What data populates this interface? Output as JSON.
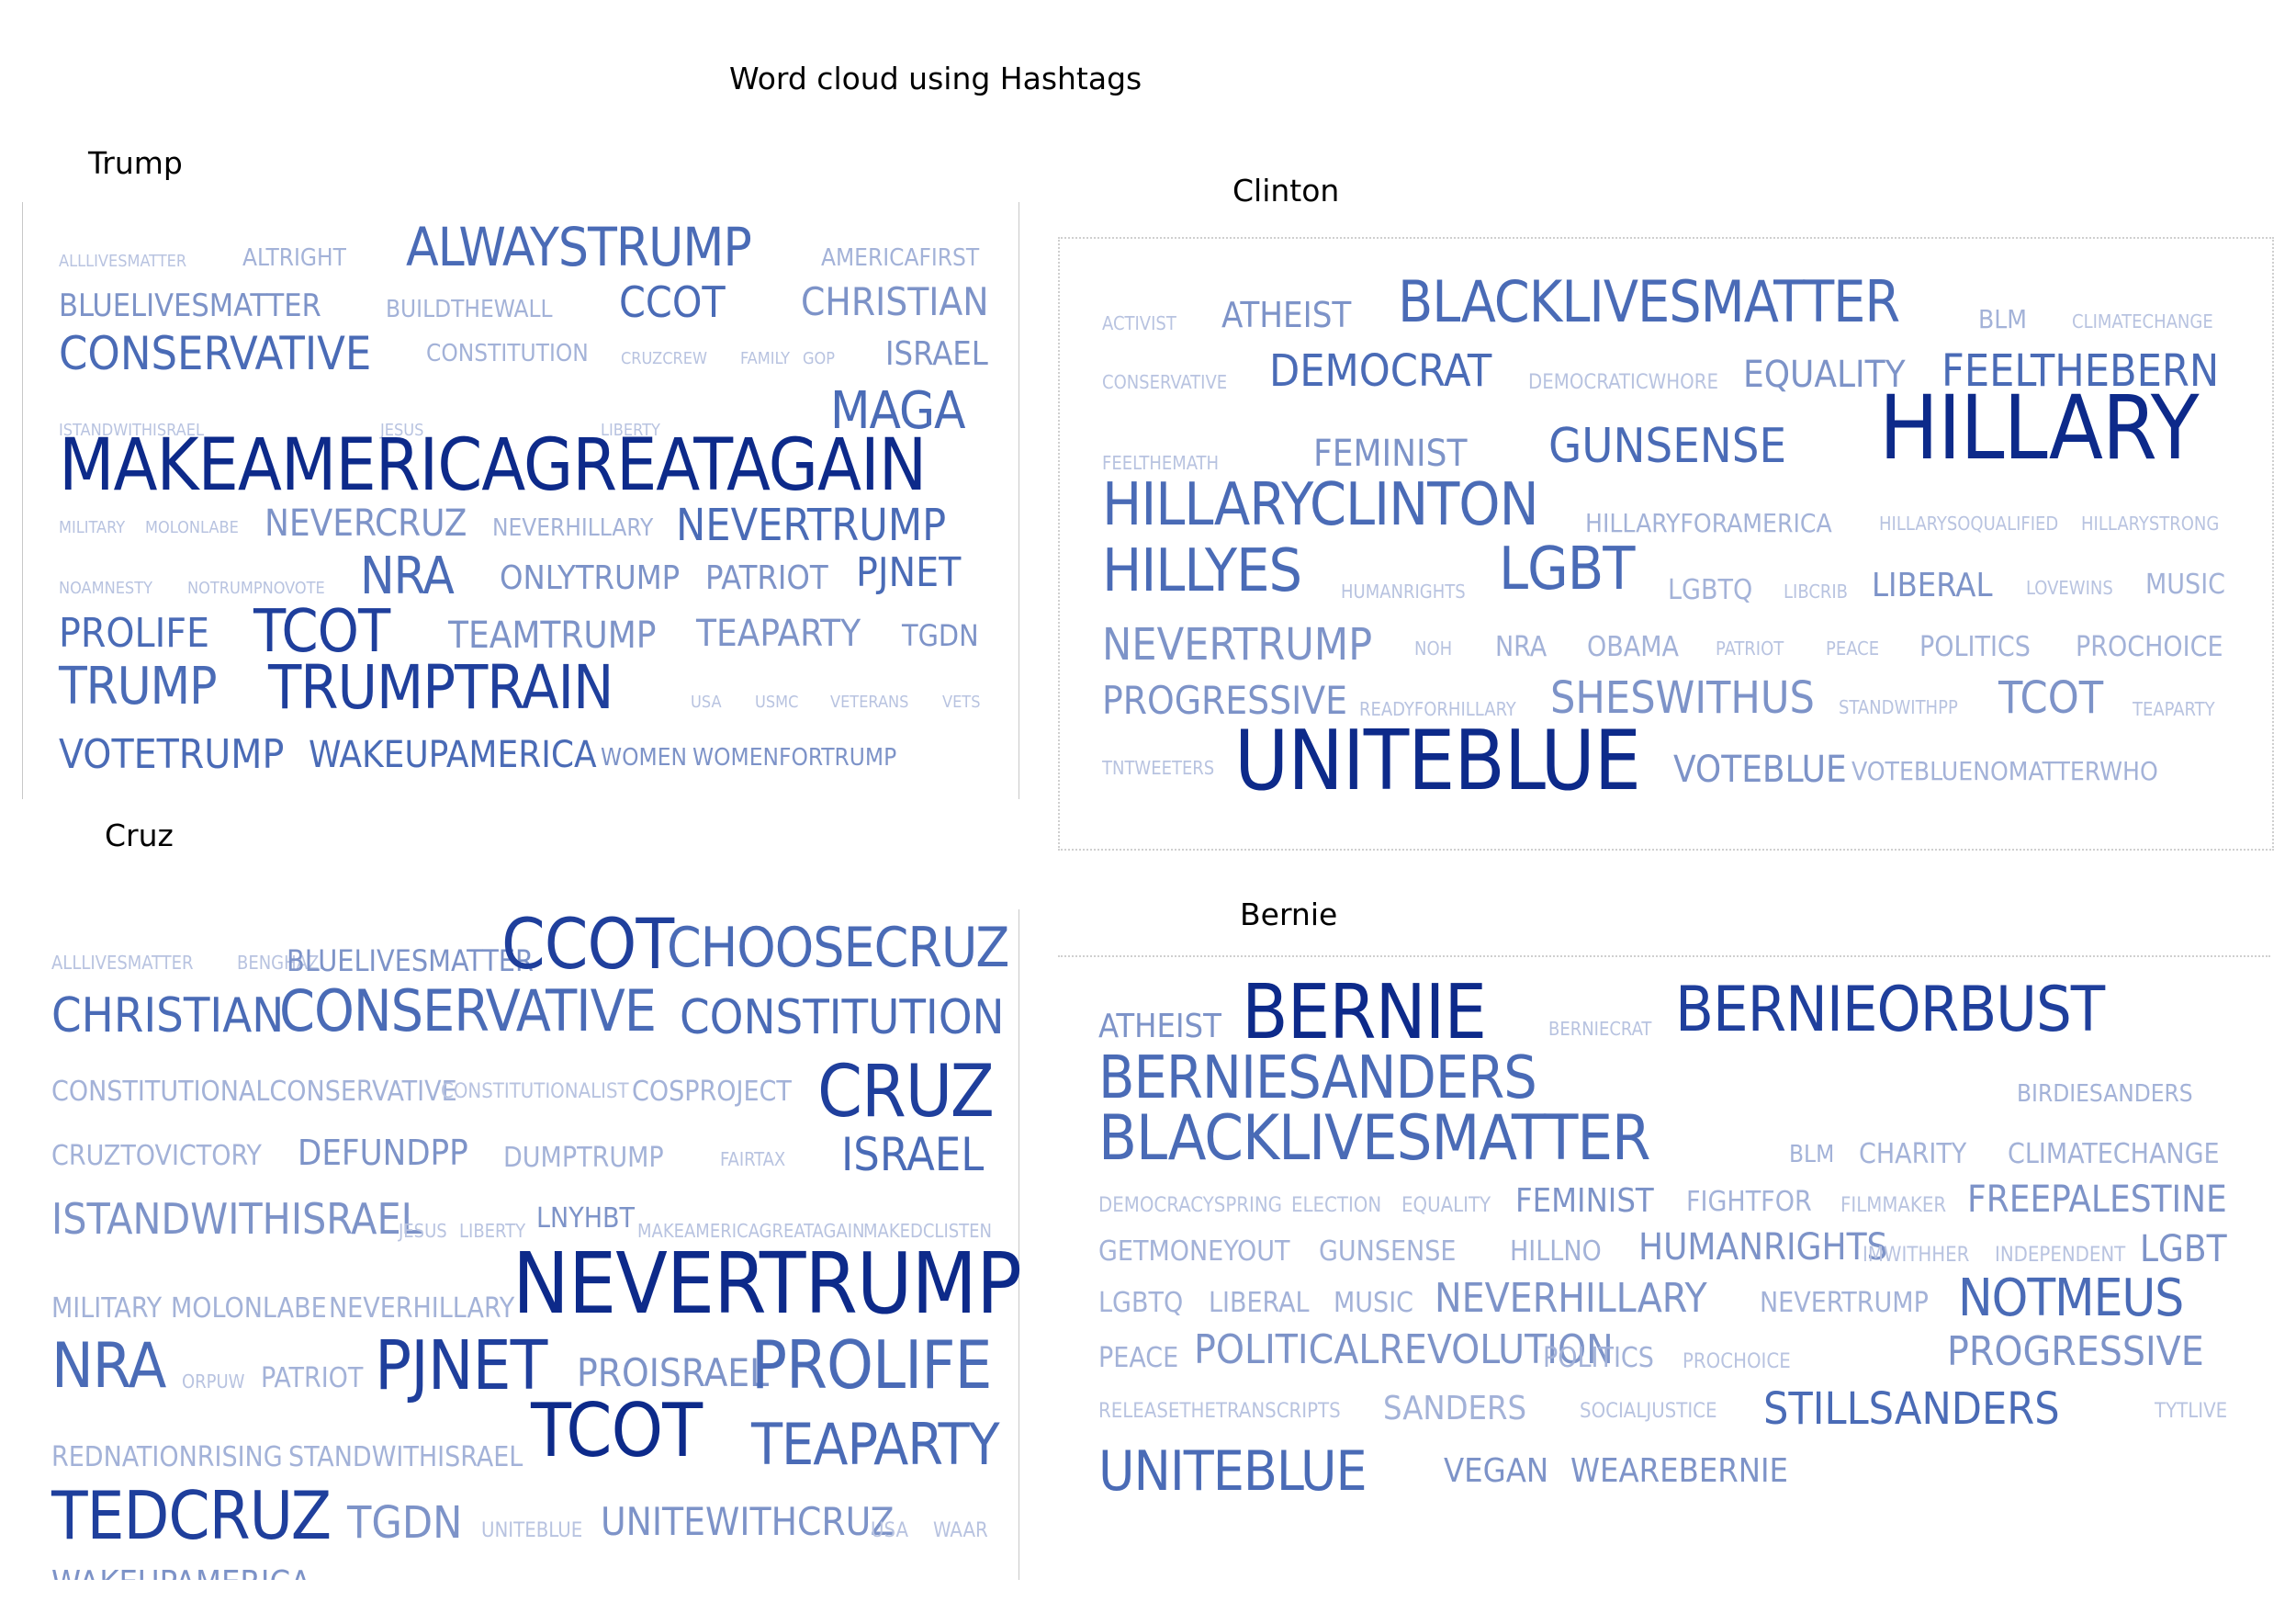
{
  "title": "Word cloud using Hashtags",
  "colors": {
    "darkest": "#0d2a8a",
    "dark": "#1f3f9c",
    "medium": "#4a6bb6",
    "light": "#7d93c8",
    "lighter": "#a3b2d8",
    "lightest": "#b8c3e0"
  },
  "clouds": [
    {
      "name": "Trump",
      "words": [
        {
          "text": "ALLLIVESMATTER",
          "weight": "lightest"
        },
        {
          "text": "ALTRIGHT",
          "weight": "lighter"
        },
        {
          "text": "ALWAYSTRUMP",
          "weight": "medium"
        },
        {
          "text": "AMERICAFIRST",
          "weight": "lighter"
        },
        {
          "text": "BLUELIVESMATTER",
          "weight": "light"
        },
        {
          "text": "BUILDTHEWALL",
          "weight": "lighter"
        },
        {
          "text": "CCOT",
          "weight": "medium"
        },
        {
          "text": "CHRISTIAN",
          "weight": "light"
        },
        {
          "text": "CONSERVATIVE",
          "weight": "medium"
        },
        {
          "text": "CONSTITUTION",
          "weight": "lighter"
        },
        {
          "text": "CRUZCREW",
          "weight": "lightest"
        },
        {
          "text": "FAMILY",
          "weight": "lightest"
        },
        {
          "text": "GOP",
          "weight": "lightest"
        },
        {
          "text": "ISRAEL",
          "weight": "light"
        },
        {
          "text": "ISTANDWITHISRAEL",
          "weight": "lightest"
        },
        {
          "text": "JESUS",
          "weight": "lightest"
        },
        {
          "text": "LIBERTY",
          "weight": "lightest"
        },
        {
          "text": "MAGA",
          "weight": "medium"
        },
        {
          "text": "MAKEAMERICAGREATAGAIN",
          "weight": "darkest"
        },
        {
          "text": "MILITARY",
          "weight": "lightest"
        },
        {
          "text": "MOLONLABE",
          "weight": "lightest"
        },
        {
          "text": "NEVERCRUZ",
          "weight": "light"
        },
        {
          "text": "NEVERHILLARY",
          "weight": "lighter"
        },
        {
          "text": "NEVERTRUMP",
          "weight": "medium"
        },
        {
          "text": "NOAMNESTY",
          "weight": "lightest"
        },
        {
          "text": "NOTRUMPNOVOTE",
          "weight": "lightest"
        },
        {
          "text": "NRA",
          "weight": "medium"
        },
        {
          "text": "ONLYTRUMP",
          "weight": "light"
        },
        {
          "text": "PATRIOT",
          "weight": "light"
        },
        {
          "text": "PJNET",
          "weight": "medium"
        },
        {
          "text": "PROLIFE",
          "weight": "medium"
        },
        {
          "text": "TCOT",
          "weight": "dark"
        },
        {
          "text": "TEAMTRUMP",
          "weight": "light"
        },
        {
          "text": "TEAPARTY",
          "weight": "light"
        },
        {
          "text": "TGDN",
          "weight": "light"
        },
        {
          "text": "TRUMP",
          "weight": "medium"
        },
        {
          "text": "TRUMPTRAIN",
          "weight": "dark"
        },
        {
          "text": "USA",
          "weight": "lightest"
        },
        {
          "text": "USMC",
          "weight": "lightest"
        },
        {
          "text": "VETERANS",
          "weight": "lightest"
        },
        {
          "text": "VETS",
          "weight": "lightest"
        },
        {
          "text": "VOTETRUMP",
          "weight": "medium"
        },
        {
          "text": "WAKEUPAMERICA",
          "weight": "medium"
        },
        {
          "text": "WOMEN",
          "weight": "light"
        },
        {
          "text": "WOMENFORTRUMP",
          "weight": "light"
        }
      ]
    },
    {
      "name": "Clinton",
      "words": [
        {
          "text": "ACTIVIST",
          "weight": "lightest"
        },
        {
          "text": "ATHEIST",
          "weight": "light"
        },
        {
          "text": "BLACKLIVESMATTER",
          "weight": "medium"
        },
        {
          "text": "BLM",
          "weight": "lighter"
        },
        {
          "text": "CLIMATECHANGE",
          "weight": "lightest"
        },
        {
          "text": "CONSERVATIVE",
          "weight": "lightest"
        },
        {
          "text": "DEMOCRAT",
          "weight": "medium"
        },
        {
          "text": "DEMOCRATICWHORE",
          "weight": "lightest"
        },
        {
          "text": "EQUALITY",
          "weight": "light"
        },
        {
          "text": "FEELTHEBERN",
          "weight": "medium"
        },
        {
          "text": "FEELTHEMATH",
          "weight": "lightest"
        },
        {
          "text": "FEMINIST",
          "weight": "light"
        },
        {
          "text": "GUNSENSE",
          "weight": "medium"
        },
        {
          "text": "HILLARY",
          "weight": "darkest"
        },
        {
          "text": "HILLARYCLINTON",
          "weight": "medium"
        },
        {
          "text": "HILLARYFORAMERICA",
          "weight": "lighter"
        },
        {
          "text": "HILLARYSOQUALIFIED",
          "weight": "lightest"
        },
        {
          "text": "HILLARYSTRONG",
          "weight": "lightest"
        },
        {
          "text": "HILLYES",
          "weight": "medium"
        },
        {
          "text": "HUMANRIGHTS",
          "weight": "lightest"
        },
        {
          "text": "LGBT",
          "weight": "medium"
        },
        {
          "text": "LGBTQ",
          "weight": "lighter"
        },
        {
          "text": "LIBCRIB",
          "weight": "lightest"
        },
        {
          "text": "LIBERAL",
          "weight": "light"
        },
        {
          "text": "LOVEWINS",
          "weight": "lightest"
        },
        {
          "text": "MUSIC",
          "weight": "lighter"
        },
        {
          "text": "NEVERTRUMP",
          "weight": "light"
        },
        {
          "text": "NOH",
          "weight": "lightest"
        },
        {
          "text": "NRA",
          "weight": "lighter"
        },
        {
          "text": "OBAMA",
          "weight": "lighter"
        },
        {
          "text": "PATRIOT",
          "weight": "lightest"
        },
        {
          "text": "PEACE",
          "weight": "lightest"
        },
        {
          "text": "POLITICS",
          "weight": "lighter"
        },
        {
          "text": "PROCHOICE",
          "weight": "lighter"
        },
        {
          "text": "PROGRESSIVE",
          "weight": "light"
        },
        {
          "text": "READYFORHILLARY",
          "weight": "lightest"
        },
        {
          "text": "SHESWITHUS",
          "weight": "light"
        },
        {
          "text": "STANDWITHPP",
          "weight": "lightest"
        },
        {
          "text": "TCOT",
          "weight": "light"
        },
        {
          "text": "TEAPARTY",
          "weight": "lightest"
        },
        {
          "text": "TNTWEETERS",
          "weight": "lightest"
        },
        {
          "text": "UNITEBLUE",
          "weight": "darkest"
        },
        {
          "text": "VOTEBLUE",
          "weight": "light"
        },
        {
          "text": "VOTEBLUENOMATTERWHO",
          "weight": "lighter"
        }
      ]
    },
    {
      "name": "Cruz",
      "words": [
        {
          "text": "ALLLIVESMATTER",
          "weight": "lightest"
        },
        {
          "text": "BENGHAZI",
          "weight": "lightest"
        },
        {
          "text": "BLUELIVESMATTER",
          "weight": "light"
        },
        {
          "text": "CCOT",
          "weight": "dark"
        },
        {
          "text": "CHOOSECRUZ",
          "weight": "medium"
        },
        {
          "text": "CHRISTIAN",
          "weight": "medium"
        },
        {
          "text": "CONSERVATIVE",
          "weight": "medium"
        },
        {
          "text": "CONSTITUTION",
          "weight": "medium"
        },
        {
          "text": "CONSTITUTIONALCONSERVATIVE",
          "weight": "lighter"
        },
        {
          "text": "CONSTITUTIONALIST",
          "weight": "lightest"
        },
        {
          "text": "COSPROJECT",
          "weight": "lighter"
        },
        {
          "text": "CRUZ",
          "weight": "dark"
        },
        {
          "text": "CRUZTOVICTORY",
          "weight": "lighter"
        },
        {
          "text": "DEFUNDPP",
          "weight": "light"
        },
        {
          "text": "DUMPTRUMP",
          "weight": "lighter"
        },
        {
          "text": "FAIRTAX",
          "weight": "lightest"
        },
        {
          "text": "ISRAEL",
          "weight": "medium"
        },
        {
          "text": "ISTANDWITHISRAEL",
          "weight": "light"
        },
        {
          "text": "JESUS",
          "weight": "lightest"
        },
        {
          "text": "LIBERTY",
          "weight": "lightest"
        },
        {
          "text": "LNYHBT",
          "weight": "light"
        },
        {
          "text": "MAKEAMERICAGREATAGAIN",
          "weight": "lightest"
        },
        {
          "text": "MAKEDCLISTEN",
          "weight": "lightest"
        },
        {
          "text": "MILITARY",
          "weight": "lighter"
        },
        {
          "text": "MOLONLABE",
          "weight": "lighter"
        },
        {
          "text": "NEVERHILLARY",
          "weight": "lighter"
        },
        {
          "text": "NEVERTRUMP",
          "weight": "darkest"
        },
        {
          "text": "NRA",
          "weight": "medium"
        },
        {
          "text": "ORPUW",
          "weight": "lightest"
        },
        {
          "text": "PATRIOT",
          "weight": "lighter"
        },
        {
          "text": "PJNET",
          "weight": "dark"
        },
        {
          "text": "PROISRAEL",
          "weight": "light"
        },
        {
          "text": "PROLIFE",
          "weight": "medium"
        },
        {
          "text": "REDNATIONRISING",
          "weight": "lighter"
        },
        {
          "text": "STANDWITHISRAEL",
          "weight": "lighter"
        },
        {
          "text": "TCOT",
          "weight": "darkest"
        },
        {
          "text": "TEAPARTY",
          "weight": "medium"
        },
        {
          "text": "TEDCRUZ",
          "weight": "dark"
        },
        {
          "text": "TGDN",
          "weight": "light"
        },
        {
          "text": "UNITEBLUE",
          "weight": "lightest"
        },
        {
          "text": "UNITEWITHCRUZ",
          "weight": "light"
        },
        {
          "text": "USA",
          "weight": "lightest"
        },
        {
          "text": "WAAR",
          "weight": "lightest"
        },
        {
          "text": "WAKEUPAMERICA",
          "weight": "light"
        }
      ]
    },
    {
      "name": "Bernie",
      "words": [
        {
          "text": "ATHEIST",
          "weight": "light"
        },
        {
          "text": "BERNIE",
          "weight": "darkest"
        },
        {
          "text": "BERNIECRAT",
          "weight": "lightest"
        },
        {
          "text": "BERNIEORBUST",
          "weight": "dark"
        },
        {
          "text": "BERNIESANDERS",
          "weight": "medium"
        },
        {
          "text": "BIRDIESANDERS",
          "weight": "lighter"
        },
        {
          "text": "BLACKLIVESMATTER",
          "weight": "medium"
        },
        {
          "text": "BLM",
          "weight": "lighter"
        },
        {
          "text": "CHARITY",
          "weight": "lighter"
        },
        {
          "text": "CLIMATECHANGE",
          "weight": "lighter"
        },
        {
          "text": "DEMOCRACYSPRING",
          "weight": "lightest"
        },
        {
          "text": "ELECTION",
          "weight": "lightest"
        },
        {
          "text": "EQUALITY",
          "weight": "lightest"
        },
        {
          "text": "FEMINIST",
          "weight": "light"
        },
        {
          "text": "FIGHTFOR",
          "weight": "lighter"
        },
        {
          "text": "FILMMAKER",
          "weight": "lightest"
        },
        {
          "text": "FREEPALESTINE",
          "weight": "light"
        },
        {
          "text": "GETMONEYOUT",
          "weight": "lighter"
        },
        {
          "text": "GUNSENSE",
          "weight": "lighter"
        },
        {
          "text": "HILLNO",
          "weight": "lighter"
        },
        {
          "text": "HUMANRIGHTS",
          "weight": "light"
        },
        {
          "text": "IMWITHHER",
          "weight": "lightest"
        },
        {
          "text": "INDEPENDENT",
          "weight": "lightest"
        },
        {
          "text": "LGBT",
          "weight": "light"
        },
        {
          "text": "LGBTQ",
          "weight": "lighter"
        },
        {
          "text": "LIBERAL",
          "weight": "lighter"
        },
        {
          "text": "MUSIC",
          "weight": "lighter"
        },
        {
          "text": "NEVERHILLARY",
          "weight": "light"
        },
        {
          "text": "NEVERTRUMP",
          "weight": "lighter"
        },
        {
          "text": "NOTMEUS",
          "weight": "medium"
        },
        {
          "text": "PEACE",
          "weight": "lighter"
        },
        {
          "text": "POLITICALREVOLUTION",
          "weight": "light"
        },
        {
          "text": "POLITICS",
          "weight": "lighter"
        },
        {
          "text": "PROCHOICE",
          "weight": "lightest"
        },
        {
          "text": "PROGRESSIVE",
          "weight": "light"
        },
        {
          "text": "RELEASETHETRANSCRIPTS",
          "weight": "lightest"
        },
        {
          "text": "SANDERS",
          "weight": "lighter"
        },
        {
          "text": "SOCIALJUSTICE",
          "weight": "lightest"
        },
        {
          "text": "STILLSANDERS",
          "weight": "medium"
        },
        {
          "text": "TYTLIVE",
          "weight": "lightest"
        },
        {
          "text": "UNITEBLUE",
          "weight": "medium"
        },
        {
          "text": "VEGAN",
          "weight": "light"
        },
        {
          "text": "WEAREBERNIE",
          "weight": "light"
        }
      ]
    }
  ]
}
